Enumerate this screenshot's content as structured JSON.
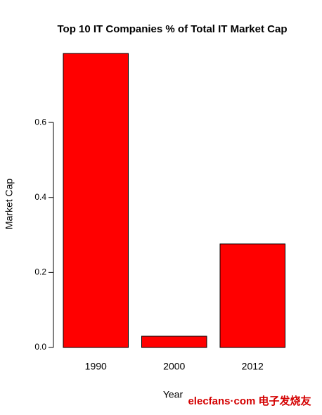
{
  "chart_data": {
    "type": "bar",
    "title": "Top 10 IT Companies % of Total IT Market Cap",
    "x_label": "Year",
    "y_label": "Market Cap",
    "categories": [
      "1990",
      "2000",
      "2012"
    ],
    "values": [
      0.784,
      0.03,
      0.276
    ],
    "color": "#ff0000",
    "ylim": [
      0,
      0.784
    ],
    "yticks": [
      {
        "value": 0,
        "label": "0.0"
      },
      0.2,
      0.4,
      0.6
    ],
    "grid": false
  },
  "watermark": "elecfans·com 电子发烧友"
}
